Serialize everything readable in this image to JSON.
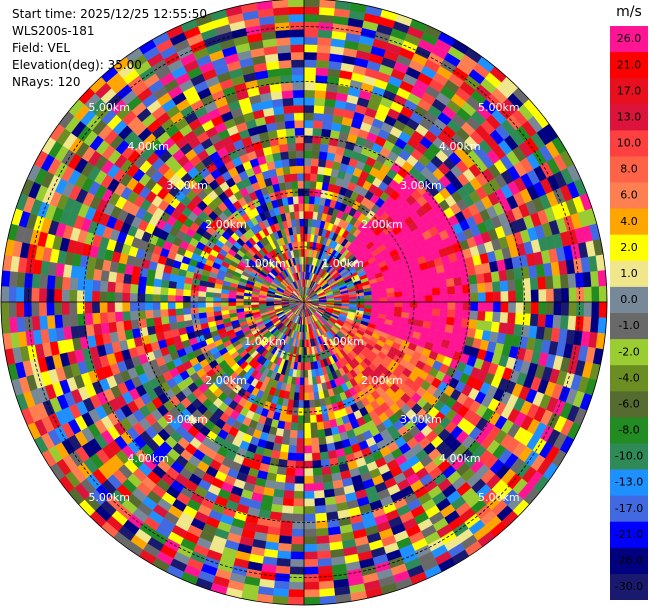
{
  "header": {
    "start_time": "Start time: 2025/12/25 12:55:50",
    "instrument": "WLS200s-181",
    "field": "Field: VEL",
    "elevation": "Elevation(deg): 35.00",
    "nrays": "NRays: 120"
  },
  "chart_data": {
    "type": "heatmap",
    "projection": "polar-ppi",
    "field": "VEL",
    "units": "m/s",
    "elevation_deg": 35.0,
    "n_rays": 120,
    "range_rings_km": [
      1.0,
      2.0,
      3.0,
      4.0,
      5.0
    ],
    "range_ring_labels": [
      "1.00km",
      "2.00km",
      "3.00km",
      "4.00km",
      "5.00km"
    ],
    "max_range_km": 5.5,
    "colorbar": {
      "label": "m/s",
      "tick_labels": [
        "26.0",
        "21.0",
        "17.0",
        "13.0",
        "10.0",
        "8.0",
        "6.0",
        "4.0",
        "2.0",
        "1.0",
        "0.0",
        "-1.0",
        "-2.0",
        "-4.0",
        "-6.0",
        "-8.0",
        "-10.0",
        "-13.0",
        "-17.0",
        "-21.0",
        "-26.0",
        "-30.0"
      ],
      "colors": [
        "#ff1493",
        "#ff0000",
        "#e8101e",
        "#dc143c",
        "#ff4040",
        "#ff6347",
        "#ff7f50",
        "#ffa500",
        "#ffff00",
        "#f0e68c",
        "#778899",
        "#696969",
        "#9acd32",
        "#6b8e23",
        "#556b2f",
        "#228b22",
        "#2e8b57",
        "#1e90ff",
        "#4169e1",
        "#0000ff",
        "#000080",
        "#191970"
      ]
    }
  }
}
